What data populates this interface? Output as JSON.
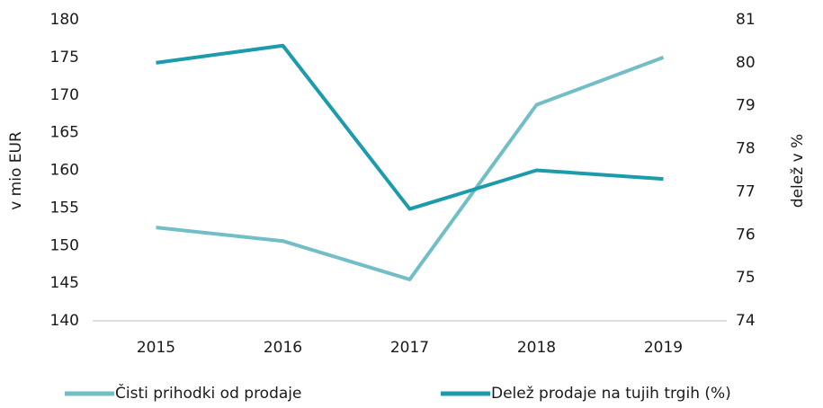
{
  "chart_data": {
    "type": "line",
    "categories": [
      "2015",
      "2016",
      "2017",
      "2018",
      "2019"
    ],
    "series": [
      {
        "name": "Čisti prihodki od prodaje",
        "color": "#72bec6",
        "values": [
          152.4,
          150.6,
          145.5,
          168.7,
          175.0
        ]
      },
      {
        "name": "Delež prodaje na tujih trgih (%)",
        "color": "#1b9bab",
        "axis": "y2",
        "values": [
          80.0,
          80.4,
          76.6,
          77.5,
          77.3
        ]
      }
    ],
    "ylabel": "v mio EUR",
    "y2label": "delež v %",
    "ylim": [
      140,
      180
    ],
    "yticks": [
      140,
      145,
      150,
      155,
      160,
      165,
      170,
      175,
      180
    ],
    "y2lim": [
      74,
      81
    ],
    "y2ticks": [
      74,
      75,
      76,
      77,
      78,
      79,
      80,
      81
    ],
    "legend": "bottom",
    "grid": false
  }
}
